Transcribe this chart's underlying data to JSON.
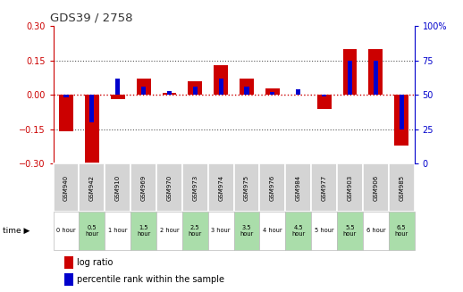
{
  "title": "GDS39 / 2758",
  "samples": [
    "GSM940",
    "GSM942",
    "GSM910",
    "GSM969",
    "GSM970",
    "GSM973",
    "GSM974",
    "GSM975",
    "GSM976",
    "GSM984",
    "GSM977",
    "GSM903",
    "GSM906",
    "GSM985"
  ],
  "time_labels": [
    "0 hour",
    "0.5\nhour",
    "1 hour",
    "1.5\nhour",
    "2 hour",
    "2.5\nhour",
    "3 hour",
    "3.5\nhour",
    "4 hour",
    "4.5\nhour",
    "5 hour",
    "5.5\nhour",
    "6 hour",
    "6.5\nhour"
  ],
  "log_ratio": [
    -0.16,
    -0.32,
    -0.02,
    0.07,
    0.01,
    0.06,
    0.13,
    0.07,
    0.03,
    0.0,
    -0.06,
    0.2,
    0.2,
    -0.22
  ],
  "percentile": [
    48,
    30,
    62,
    56,
    53,
    56,
    62,
    56,
    52,
    54,
    49,
    75,
    75,
    25
  ],
  "time_bg": [
    "white",
    "lightgreen",
    "white",
    "lightgreen",
    "white",
    "lightgreen",
    "white",
    "lightgreen",
    "white",
    "lightgreen",
    "white",
    "lightgreen",
    "white",
    "lightgreen"
  ],
  "ylim": [
    -0.3,
    0.3
  ],
  "y2lim": [
    0,
    100
  ],
  "yticks": [
    -0.3,
    -0.15,
    0,
    0.15,
    0.3
  ],
  "y2ticks": [
    0,
    25,
    50,
    75,
    100
  ],
  "bar_color": "#cc0000",
  "pct_color": "#0000cc",
  "title_color": "#333333",
  "left_axis_color": "#cc0000",
  "right_axis_color": "#0000cc",
  "zero_line_color": "#cc0000",
  "dotted_line_color": "#555555",
  "bar_width": 0.55,
  "pct_bar_width": 0.18,
  "gsm_bg": "#cccccc",
  "gsm_edge": "#ffffff",
  "green_bg": "#aaddaa",
  "white_bg": "#ffffff"
}
